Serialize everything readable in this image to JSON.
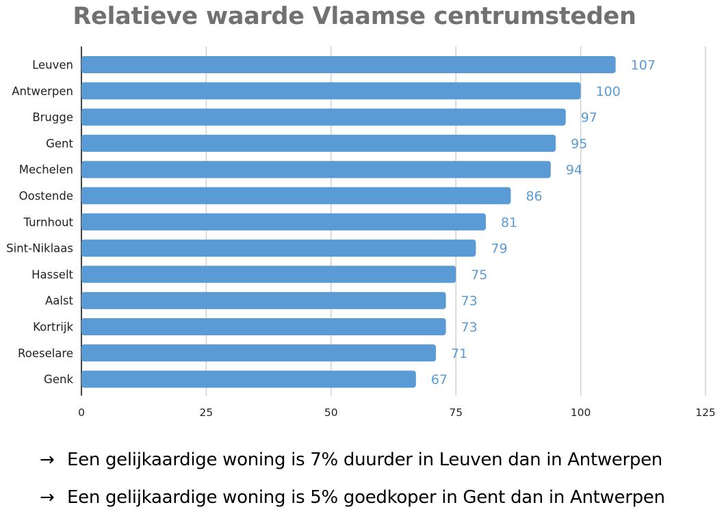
{
  "chart_data": {
    "type": "bar",
    "orientation": "horizontal",
    "title": "Relatieve waarde Vlaamse centrumsteden",
    "categories": [
      "Leuven",
      "Antwerpen",
      "Brugge",
      "Gent",
      "Mechelen",
      "Oostende",
      "Turnhout",
      "Sint-Niklaas",
      "Hasselt",
      "Aalst",
      "Kortrijk",
      "Roeselare",
      "Genk"
    ],
    "values": [
      107,
      100,
      97,
      95,
      94,
      86,
      81,
      79,
      75,
      73,
      73,
      71,
      67
    ],
    "data_labels": [
      "107",
      "100",
      "97",
      "95",
      "94",
      "86",
      "81",
      "79",
      "75",
      "73",
      "73",
      "71",
      "67"
    ],
    "xlim": [
      0,
      125
    ],
    "xticks": [
      "0",
      "25",
      "50",
      "75",
      "100",
      "125"
    ],
    "grid": "vertical",
    "bar_color": "#5b9bd5"
  },
  "notes": [
    {
      "arrow": "→",
      "text": "Een gelijkaardige woning is 7% duurder in Leuven dan in Antwerpen"
    },
    {
      "arrow": "→",
      "text": "Een gelijkaardige woning is 5% goedkoper in Gent dan in Antwerpen"
    }
  ]
}
